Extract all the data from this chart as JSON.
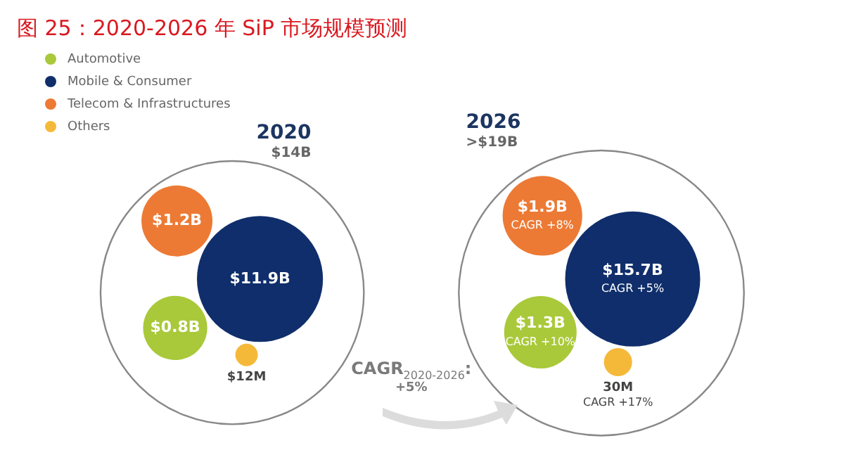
{
  "chart_data": {
    "type": "other",
    "title": "图 25：2020-2026 年 SiP 市场规模预测",
    "categories": [
      "2020",
      "2026"
    ],
    "totals": [
      "$14B",
      ">$19B"
    ],
    "legend": "top left",
    "series": [
      {
        "name": "Automotive",
        "color": "#a9c93a",
        "values": [
          800000000,
          1300000000
        ],
        "value_labels": [
          "$0.8B",
          "$1.3B"
        ]
      },
      {
        "name": "Mobile & Consumer",
        "color": "#0f2e6b",
        "values": [
          11900000000,
          15700000000
        ],
        "value_labels": [
          "$11.9B",
          "$15.7B"
        ]
      },
      {
        "name": "Telecom & Infrastructures",
        "color": "#ec7a35",
        "values": [
          1200000000,
          1900000000
        ],
        "value_labels": [
          "$1.2B",
          "$1.9B"
        ]
      },
      {
        "name": "Others",
        "color": "#f5b93a",
        "values": [
          12000000,
          30000000
        ],
        "value_labels": [
          "$12M",
          "30M"
        ]
      }
    ],
    "annotations": [
      "CAGR +10%",
      "CAGR +5%",
      "CAGR +8%",
      "CAGR +17%",
      "CAGR$_{2020-2026}$: +5%"
    ]
  }
}
